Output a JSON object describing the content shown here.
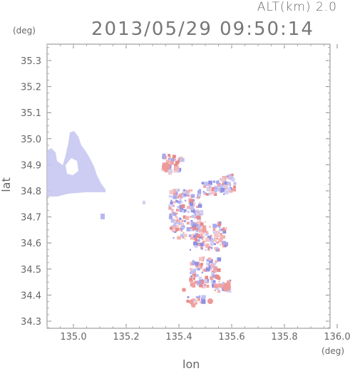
{
  "header": {
    "altitude_label": "ALT(km) 2.0",
    "timestamp": "2013/05/29 09:50:14"
  },
  "axes": {
    "x_label": "lon",
    "y_label": "lat",
    "x_unit": "(deg)",
    "y_unit": "(deg)",
    "x_ticks": [
      "135.0",
      "135.2",
      "135.4",
      "135.6",
      "135.8",
      "136.0"
    ],
    "y_ticks": [
      "35.3",
      "35.2",
      "35.1",
      "35.0",
      "34.9",
      "34.8",
      "34.7",
      "34.6",
      "34.5",
      "34.4",
      "34.3"
    ]
  },
  "colors": {
    "blue_velocity": "#c8c8f2",
    "red_velocity": "#f0a0a0",
    "axis": "#888888"
  }
}
